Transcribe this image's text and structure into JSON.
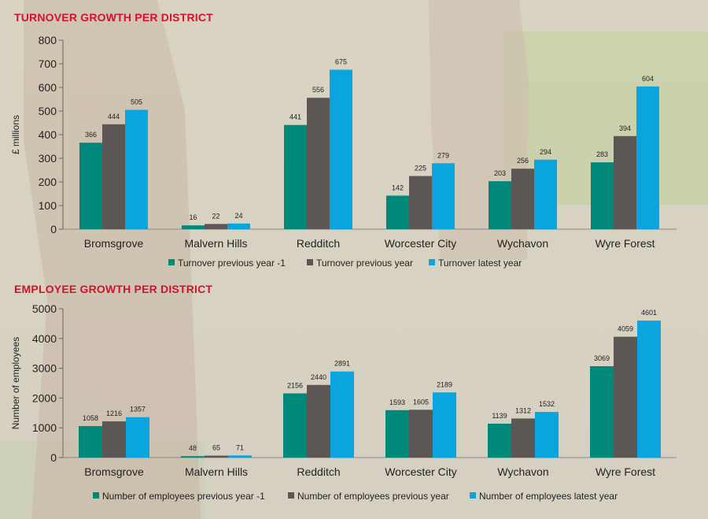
{
  "colors": {
    "series1": "#00897b",
    "series2": "#5c5655",
    "series3": "#0aa4de",
    "title": "#d4122d"
  },
  "chart_data": [
    {
      "type": "bar",
      "title": "TURNOVER GROWTH PER DISTRICT",
      "ylabel": "£ millions",
      "xlabel": "",
      "categories": [
        "Bromsgrove",
        "Malvern Hills",
        "Redditch",
        "Worcester City",
        "Wychavon",
        "Wyre Forest"
      ],
      "ylim": [
        0,
        800
      ],
      "yticks": [
        "0",
        "100",
        "200",
        "300",
        "400",
        "500",
        "600",
        "700",
        "800"
      ],
      "series": [
        {
          "name": "Turnover previous year -1",
          "values": [
            366,
            16,
            441,
            142,
            203,
            283
          ]
        },
        {
          "name": "Turnover previous year",
          "values": [
            444,
            22,
            556,
            225,
            256,
            394
          ]
        },
        {
          "name": "Turnover latest year",
          "values": [
            505,
            24,
            675,
            279,
            294,
            604
          ]
        }
      ],
      "legend": "bottom"
    },
    {
      "type": "bar",
      "title": "EMPLOYEE GROWTH PER DISTRICT",
      "ylabel": "Number of employees",
      "xlabel": "",
      "categories": [
        "Bromsgrove",
        "Malvern Hills",
        "Redditch",
        "Worcester City",
        "Wychavon",
        "Wyre Forest"
      ],
      "ylim": [
        0,
        5000
      ],
      "yticks": [
        "0",
        "1000",
        "2000",
        "3000",
        "4000",
        "5000"
      ],
      "series": [
        {
          "name": "Number of employees previous year -1",
          "values": [
            1058,
            48,
            2156,
            1593,
            1139,
            3069
          ]
        },
        {
          "name": "Number of employees previous year",
          "values": [
            1216,
            65,
            2440,
            1605,
            1312,
            4059
          ]
        },
        {
          "name": "Number of employees latest year",
          "values": [
            1357,
            71,
            2891,
            2189,
            1532,
            4601
          ]
        }
      ],
      "legend": "bottom"
    }
  ]
}
